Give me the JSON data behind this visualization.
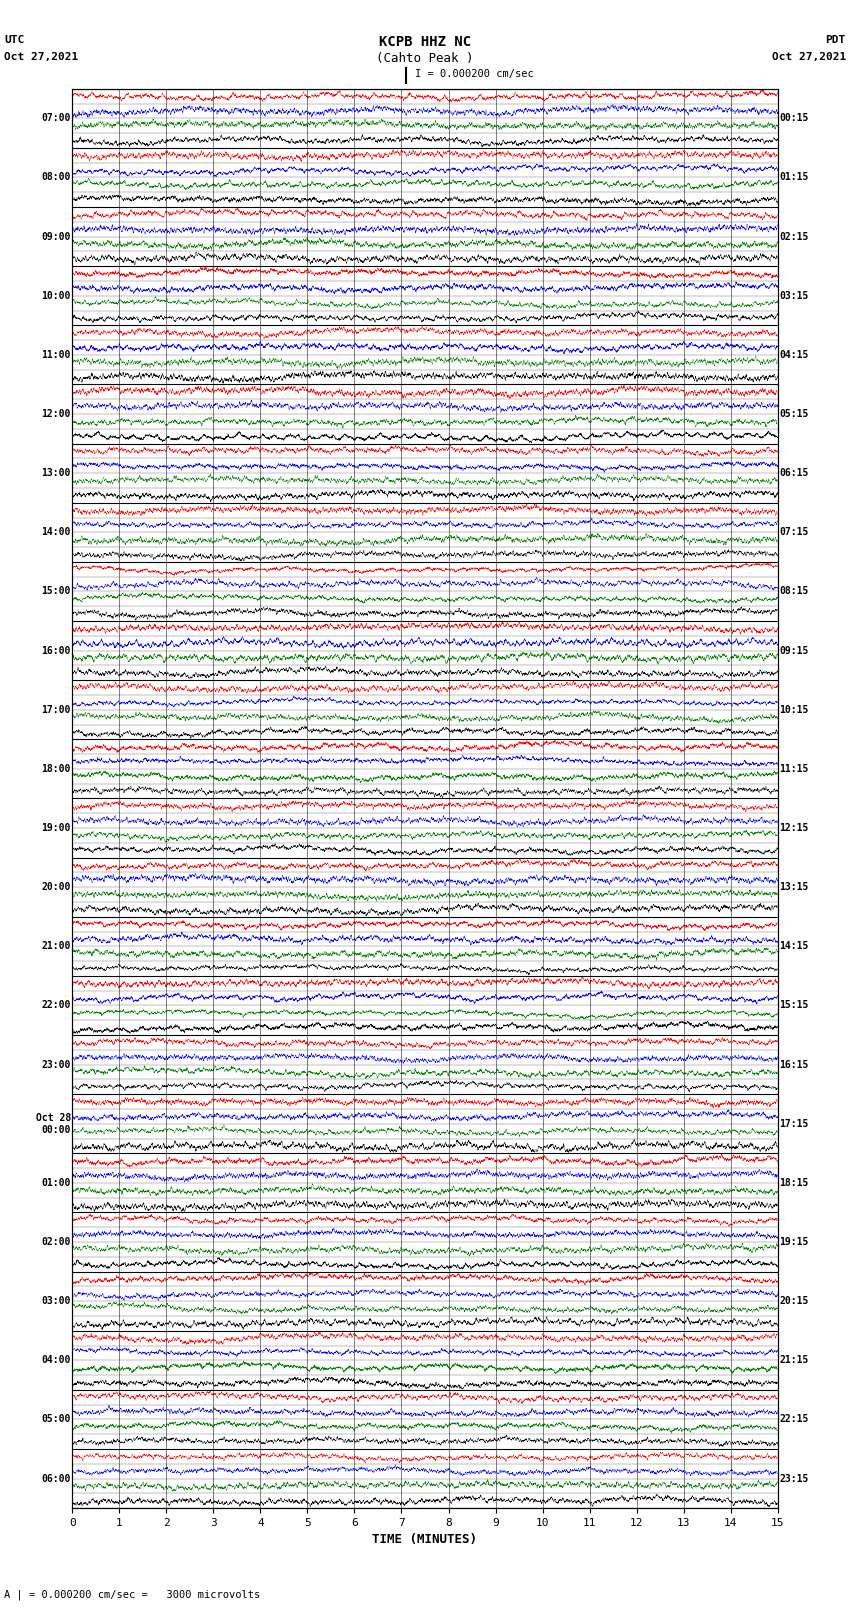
{
  "title_line1": "KCPB HHZ NC",
  "title_line2": "(Cahto Peak )",
  "scale_label": "I = 0.000200 cm/sec",
  "left_label_top": "UTC",
  "left_label_date": "Oct 27,2021",
  "right_label_top": "PDT",
  "right_label_date": "Oct 27,2021",
  "bottom_label": "TIME (MINUTES)",
  "bottom_note": "A | = 0.000200 cm/sec =   3000 microvolts",
  "left_times_utc": [
    "07:00",
    "08:00",
    "09:00",
    "10:00",
    "11:00",
    "12:00",
    "13:00",
    "14:00",
    "15:00",
    "16:00",
    "17:00",
    "18:00",
    "19:00",
    "20:00",
    "21:00",
    "22:00",
    "23:00",
    "Oct 28\n00:00",
    "01:00",
    "02:00",
    "03:00",
    "04:00",
    "05:00",
    "06:00"
  ],
  "right_times_pdt": [
    "00:15",
    "01:15",
    "02:15",
    "03:15",
    "04:15",
    "05:15",
    "06:15",
    "07:15",
    "08:15",
    "09:15",
    "10:15",
    "11:15",
    "12:15",
    "13:15",
    "14:15",
    "15:15",
    "16:15",
    "17:15",
    "18:15",
    "19:15",
    "20:15",
    "21:15",
    "22:15",
    "23:15"
  ],
  "num_rows": 24,
  "colors": [
    "red",
    "blue",
    "green",
    "black"
  ],
  "sub_row_colors": [
    "red",
    "blue",
    "green",
    "black"
  ],
  "bg_color": "white",
  "xmin": 0,
  "xmax": 15,
  "xticks": [
    0,
    1,
    2,
    3,
    4,
    5,
    6,
    7,
    8,
    9,
    10,
    11,
    12,
    13,
    14,
    15
  ],
  "noise_seed": 42,
  "n_points": 6000,
  "amplitude": 0.45,
  "sub_rows": 4
}
